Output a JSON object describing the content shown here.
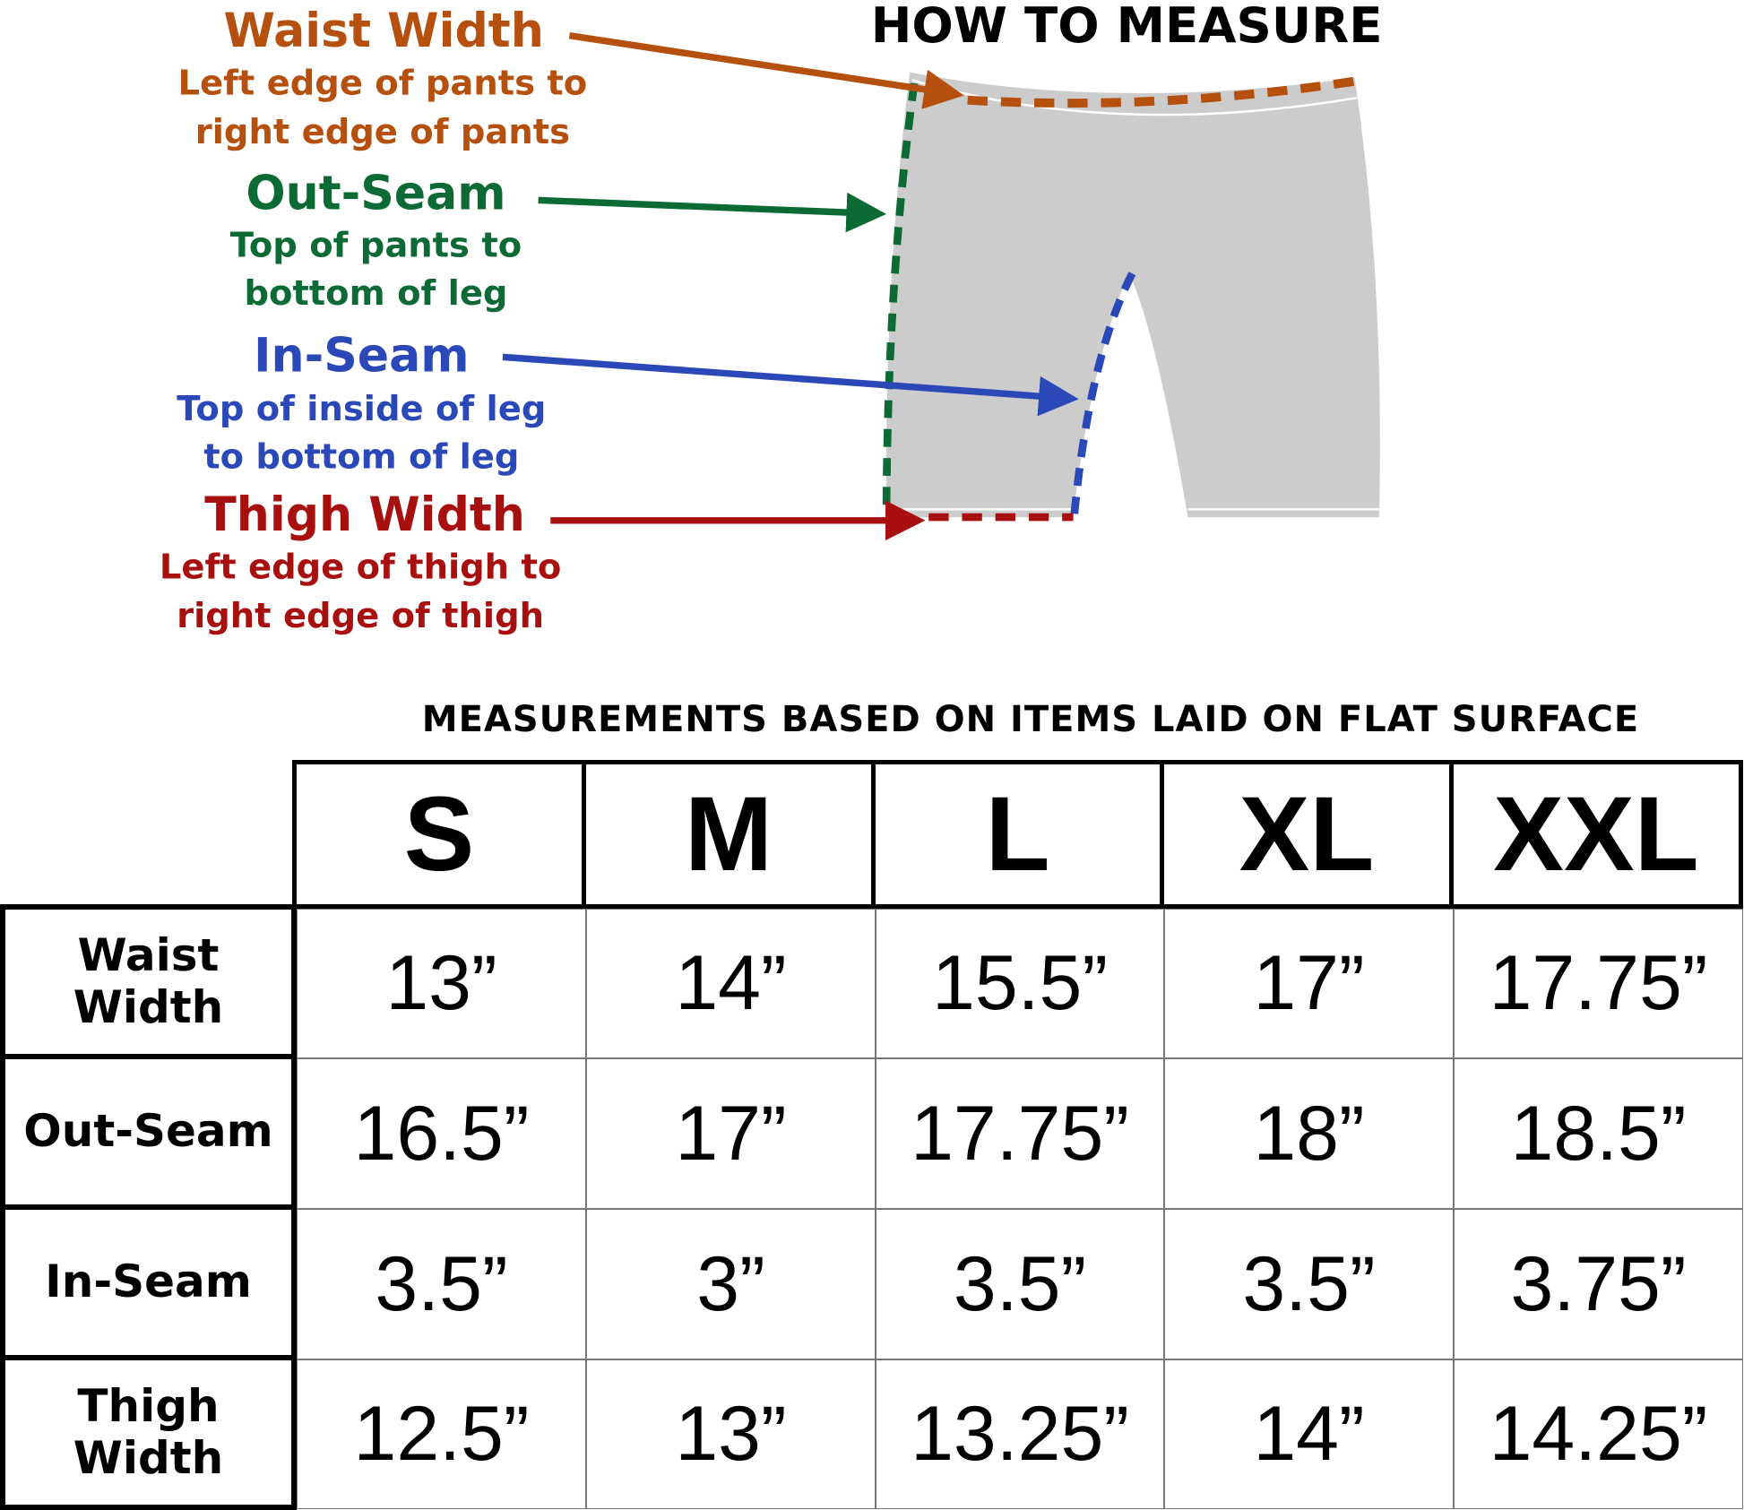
{
  "title": "HOW TO MEASURE",
  "labels": {
    "waist": {
      "name": "Waist Width",
      "desc1": "Left edge of pants to",
      "desc2": "right edge of pants",
      "color": "#b5500f"
    },
    "outseam": {
      "name": "Out-Seam",
      "desc1": "Top of pants to",
      "desc2": "bottom of leg",
      "color": "#0c6b35"
    },
    "inseam": {
      "name": "In-Seam",
      "desc1": "Top of inside of leg",
      "desc2": "to bottom of leg",
      "color": "#2a48b8"
    },
    "thigh": {
      "name": "Thigh Width",
      "desc1": "Left edge of thigh to",
      "desc2": "right edge of thigh",
      "color": "#a81010"
    }
  },
  "note": "MEASUREMENTS BASED ON ITEMS LAID ON FLAT SURFACE",
  "table": {
    "sizes": [
      "S",
      "M",
      "L",
      "XL",
      "XXL"
    ],
    "rows": [
      {
        "label1": "Waist",
        "label2": "Width",
        "values": [
          "13”",
          "14”",
          "15.5”",
          "17”",
          "17.75”"
        ]
      },
      {
        "label1": "Out-Seam",
        "label2": "",
        "values": [
          "16.5”",
          "17”",
          "17.75”",
          "18”",
          "18.5”"
        ]
      },
      {
        "label1": "In-Seam",
        "label2": "",
        "values": [
          "3.5”",
          "3”",
          "3.5”",
          "3.5”",
          "3.75”"
        ]
      },
      {
        "label1": "Thigh",
        "label2": "Width",
        "values": [
          "12.5”",
          "13”",
          "13.25”",
          "14”",
          "14.25”"
        ]
      }
    ]
  }
}
